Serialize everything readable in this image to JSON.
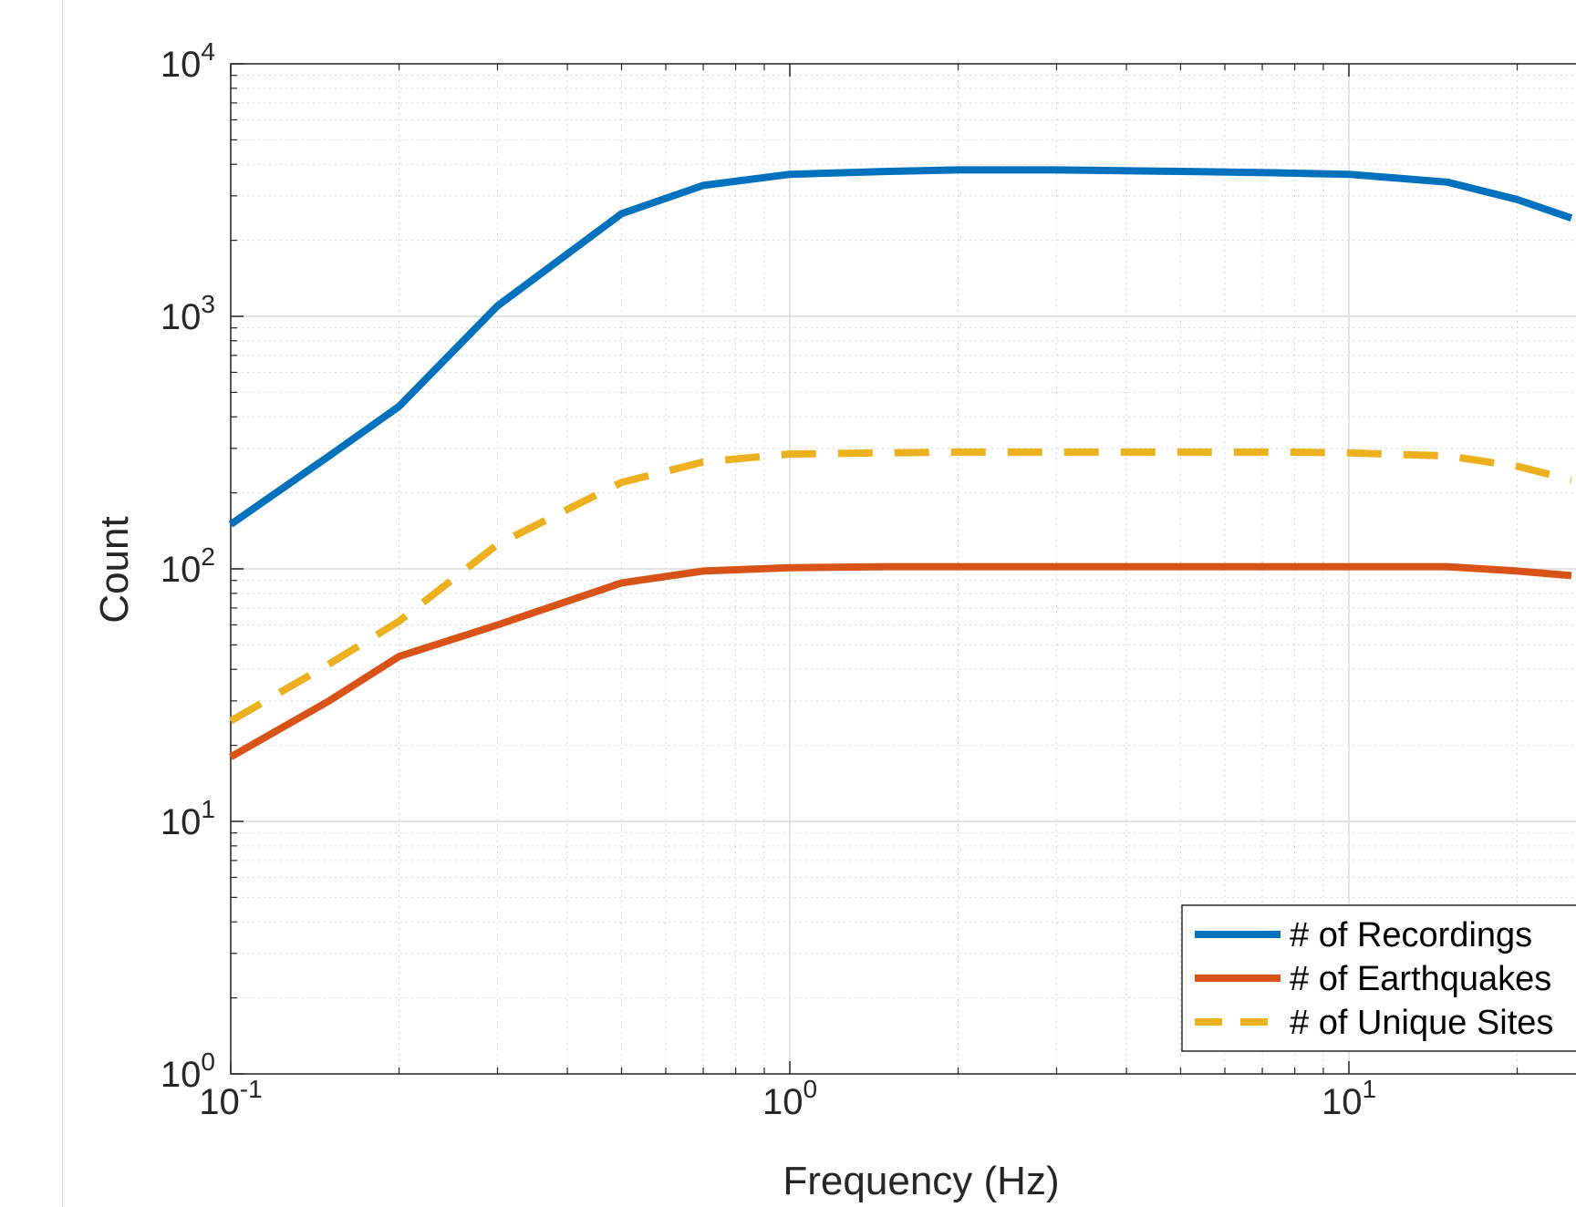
{
  "chart_data": {
    "type": "line",
    "title": "",
    "xlabel": "Frequency (Hz)",
    "ylabel": "Count",
    "xscale": "log",
    "yscale": "log",
    "xlim": [
      0.1,
      25
    ],
    "ylim": [
      1,
      10000
    ],
    "grid": true,
    "minor_grid": true,
    "legend_position": "bottom-right",
    "x_ticks": [
      {
        "base": "10",
        "exp": "-1",
        "value": 0.1
      },
      {
        "base": "10",
        "exp": "0",
        "value": 1
      },
      {
        "base": "10",
        "exp": "1",
        "value": 10
      }
    ],
    "y_ticks": [
      {
        "base": "10",
        "exp": "0",
        "value": 1
      },
      {
        "base": "10",
        "exp": "1",
        "value": 10
      },
      {
        "base": "10",
        "exp": "2",
        "value": 100
      },
      {
        "base": "10",
        "exp": "3",
        "value": 1000
      },
      {
        "base": "10",
        "exp": "4",
        "value": 10000
      }
    ],
    "series": [
      {
        "name": "# of Recordings",
        "color": "#0072BD",
        "style": "solid",
        "x": [
          0.1,
          0.15,
          0.2,
          0.3,
          0.5,
          0.7,
          1,
          1.5,
          2,
          3,
          5,
          7.5,
          10,
          15,
          20,
          25
        ],
        "y": [
          150,
          280,
          440,
          1100,
          2550,
          3300,
          3650,
          3750,
          3800,
          3800,
          3750,
          3700,
          3650,
          3400,
          2900,
          2450
        ]
      },
      {
        "name": "# of Earthquakes",
        "color": "#D95319",
        "style": "solid",
        "x": [
          0.1,
          0.15,
          0.2,
          0.3,
          0.5,
          0.7,
          1,
          1.5,
          2,
          3,
          5,
          7.5,
          10,
          15,
          20,
          25
        ],
        "y": [
          18,
          30,
          45,
          60,
          88,
          98,
          101,
          102,
          102,
          102,
          102,
          102,
          102,
          102,
          98,
          94
        ]
      },
      {
        "name": "# of Unique Sites",
        "color": "#EDB120",
        "style": "dashed",
        "x": [
          0.1,
          0.15,
          0.2,
          0.3,
          0.5,
          0.7,
          1,
          1.5,
          2,
          3,
          5,
          7.5,
          10,
          15,
          20,
          25
        ],
        "y": [
          25,
          42,
          62,
          125,
          220,
          265,
          285,
          288,
          290,
          290,
          290,
          290,
          288,
          280,
          255,
          225
        ]
      }
    ]
  }
}
